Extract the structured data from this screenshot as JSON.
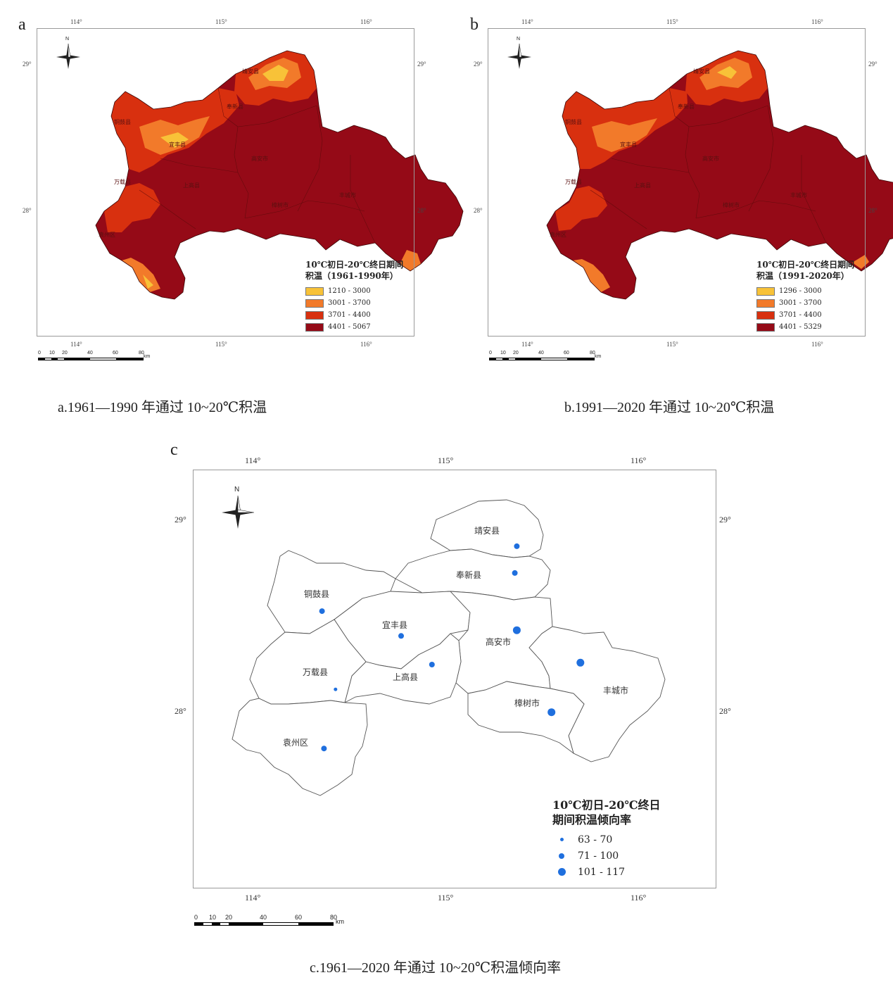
{
  "panels": {
    "a": {
      "letter": "a",
      "caption": "a.1961—1990 年通过 10~20℃积温",
      "legend_title_1": "10℃初日-20℃终日期间",
      "legend_title_2": "积温（1961-1990年）",
      "legend": [
        {
          "label": "1210 - 3000",
          "color": "#f8c238"
        },
        {
          "label": "3001 - 3700",
          "color": "#f27a2a"
        },
        {
          "label": "3701 - 4400",
          "color": "#d8300f"
        },
        {
          "label": "4401 - 5067",
          "color": "#950a17"
        }
      ]
    },
    "b": {
      "letter": "b",
      "caption": "b.1991—2020 年通过 10~20℃积温",
      "legend_title_1": "10℃初日-20℃终日期间",
      "legend_title_2": "积温（1991-2020年）",
      "legend": [
        {
          "label": "1296 - 3000",
          "color": "#f8c238"
        },
        {
          "label": "3001 - 3700",
          "color": "#f27a2a"
        },
        {
          "label": "3701 - 4400",
          "color": "#d8300f"
        },
        {
          "label": "4401 - 5329",
          "color": "#950a17"
        }
      ]
    },
    "c": {
      "letter": "c",
      "caption": "c.1961—2020 年通过 10~20℃积温倾向率",
      "legend_title_1": "10℃初日-20℃终日",
      "legend_title_2": "期间积温倾向率",
      "legend": [
        {
          "label": "63 - 70",
          "size": "small"
        },
        {
          "label": "71 - 100",
          "size": "medium"
        },
        {
          "label": "101 - 117",
          "size": "large"
        }
      ],
      "dot_color": "#1f6fde",
      "stations": [
        {
          "county": "靖安县",
          "lon": 115.37,
          "lat": 28.86,
          "class": "medium"
        },
        {
          "county": "奉新县",
          "lon": 115.36,
          "lat": 28.72,
          "class": "medium"
        },
        {
          "county": "铜鼓县",
          "lon": 114.36,
          "lat": 28.52,
          "class": "medium"
        },
        {
          "county": "宜丰县",
          "lon": 114.77,
          "lat": 28.39,
          "class": "medium"
        },
        {
          "county": "高安市",
          "lon": 115.37,
          "lat": 28.42,
          "class": "large"
        },
        {
          "county": "上高县",
          "lon": 114.93,
          "lat": 28.24,
          "class": "medium"
        },
        {
          "county": "丰城市",
          "lon": 115.7,
          "lat": 28.25,
          "class": "large"
        },
        {
          "county": "万载县",
          "lon": 114.43,
          "lat": 28.11,
          "class": "small"
        },
        {
          "county": "樟树市",
          "lon": 115.55,
          "lat": 27.99,
          "class": "large"
        },
        {
          "county": "袁州区",
          "lon": 114.37,
          "lat": 27.8,
          "class": "medium"
        }
      ]
    }
  },
  "counties": [
    "靖安县",
    "奉新县",
    "铜鼓县",
    "宜丰县",
    "高安市",
    "上高县",
    "丰城市",
    "万载县",
    "樟树市",
    "袁州区"
  ],
  "axes": {
    "lon_ticks": [
      "114°",
      "115°",
      "116°"
    ],
    "lat_ticks": [
      "29°",
      "28°"
    ]
  },
  "north_label": "N",
  "scale_bar": {
    "labels": [
      "0",
      "10",
      "20",
      "40",
      "60",
      "80"
    ],
    "unit": "km"
  }
}
